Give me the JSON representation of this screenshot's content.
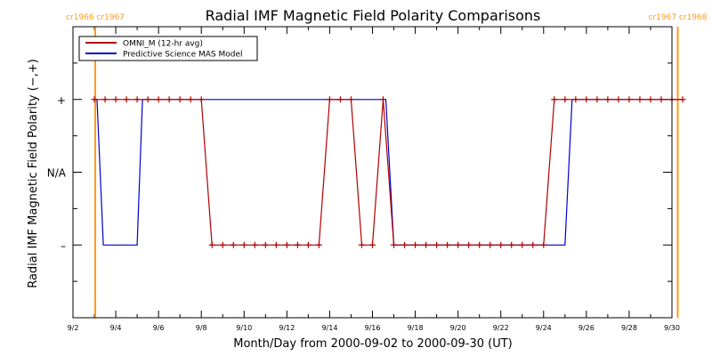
{
  "chart_data": {
    "type": "line",
    "title": "Radial IMF Magnetic Field Polarity Comparisons",
    "xlabel": "Month/Day from 2000-09-02 to 2000-09-30 (UT)",
    "ylabel": "Radial IMF Magnetic Field Polarity (−,+)",
    "x_unit": "days",
    "xlim": [
      "2000-09-02",
      "2000-09-30"
    ],
    "ylim": [
      -2,
      2
    ],
    "x_ticks": [
      {
        "x": "2000-09-02",
        "label": "9/2"
      },
      {
        "x": "2000-09-04",
        "label": "9/4"
      },
      {
        "x": "2000-09-06",
        "label": "9/6"
      },
      {
        "x": "2000-09-08",
        "label": "9/8"
      },
      {
        "x": "2000-09-10",
        "label": "9/10"
      },
      {
        "x": "2000-09-12",
        "label": "9/12"
      },
      {
        "x": "2000-09-14",
        "label": "9/14"
      },
      {
        "x": "2000-09-16",
        "label": "9/16"
      },
      {
        "x": "2000-09-18",
        "label": "9/18"
      },
      {
        "x": "2000-09-20",
        "label": "9/20"
      },
      {
        "x": "2000-09-22",
        "label": "9/22"
      },
      {
        "x": "2000-09-24",
        "label": "9/24"
      },
      {
        "x": "2000-09-26",
        "label": "9/26"
      },
      {
        "x": "2000-09-28",
        "label": "9/28"
      },
      {
        "x": "2000-09-30",
        "label": "9/30"
      }
    ],
    "y_ticks": [
      {
        "y": 1,
        "label": "+"
      },
      {
        "y": 0,
        "label": "N/A"
      },
      {
        "y": -1,
        "label": "–"
      }
    ],
    "legend_position": "top-left",
    "grid": false,
    "markers": [
      {
        "x": "2000-09-03 01:00",
        "label": "cr1966 cr1967",
        "color": "#ff9a1a"
      },
      {
        "x": "2000-09-30 06:30",
        "label": "cr1967 cr1968",
        "color": "#ff9a1a"
      }
    ],
    "series": [
      {
        "name": "OMNI_M (12-hr avg)",
        "color": "#b00000",
        "marker": "+",
        "points": [
          [
            "2000-09-03 00:00",
            1
          ],
          [
            "2000-09-03 12:00",
            1
          ],
          [
            "2000-09-04 00:00",
            1
          ],
          [
            "2000-09-04 12:00",
            1
          ],
          [
            "2000-09-05 00:00",
            1
          ],
          [
            "2000-09-05 12:00",
            1
          ],
          [
            "2000-09-06 00:00",
            1
          ],
          [
            "2000-09-06 12:00",
            1
          ],
          [
            "2000-09-07 00:00",
            1
          ],
          [
            "2000-09-07 12:00",
            1
          ],
          [
            "2000-09-08 00:00",
            1
          ],
          [
            "2000-09-08 12:00",
            -1
          ],
          [
            "2000-09-09 00:00",
            -1
          ],
          [
            "2000-09-09 12:00",
            -1
          ],
          [
            "2000-09-10 00:00",
            -1
          ],
          [
            "2000-09-10 12:00",
            -1
          ],
          [
            "2000-09-11 00:00",
            -1
          ],
          [
            "2000-09-11 12:00",
            -1
          ],
          [
            "2000-09-12 00:00",
            -1
          ],
          [
            "2000-09-12 12:00",
            -1
          ],
          [
            "2000-09-13 00:00",
            -1
          ],
          [
            "2000-09-13 12:00",
            -1
          ],
          [
            "2000-09-14 00:00",
            1
          ],
          [
            "2000-09-14 12:00",
            1
          ],
          [
            "2000-09-15 00:00",
            1
          ],
          [
            "2000-09-15 12:00",
            -1
          ],
          [
            "2000-09-16 00:00",
            -1
          ],
          [
            "2000-09-16 12:00",
            1
          ],
          [
            "2000-09-17 00:00",
            -1
          ],
          [
            "2000-09-17 12:00",
            -1
          ],
          [
            "2000-09-18 00:00",
            -1
          ],
          [
            "2000-09-18 12:00",
            -1
          ],
          [
            "2000-09-19 00:00",
            -1
          ],
          [
            "2000-09-19 12:00",
            -1
          ],
          [
            "2000-09-20 00:00",
            -1
          ],
          [
            "2000-09-20 12:00",
            -1
          ],
          [
            "2000-09-21 00:00",
            -1
          ],
          [
            "2000-09-21 12:00",
            -1
          ],
          [
            "2000-09-22 00:00",
            -1
          ],
          [
            "2000-09-22 12:00",
            -1
          ],
          [
            "2000-09-23 00:00",
            -1
          ],
          [
            "2000-09-23 12:00",
            -1
          ],
          [
            "2000-09-24 00:00",
            -1
          ],
          [
            "2000-09-24 12:00",
            1
          ],
          [
            "2000-09-25 00:00",
            1
          ],
          [
            "2000-09-25 12:00",
            1
          ],
          [
            "2000-09-26 00:00",
            1
          ],
          [
            "2000-09-26 12:00",
            1
          ],
          [
            "2000-09-27 00:00",
            1
          ],
          [
            "2000-09-27 12:00",
            1
          ],
          [
            "2000-09-28 00:00",
            1
          ],
          [
            "2000-09-28 12:00",
            1
          ],
          [
            "2000-09-29 00:00",
            1
          ],
          [
            "2000-09-29 12:00",
            1
          ],
          [
            "2000-09-30 00:00",
            1
          ],
          [
            "2000-09-30 12:00",
            1
          ]
        ]
      },
      {
        "name": "Predictive Science MAS Model",
        "color": "#0000cc",
        "points": [
          [
            "2000-09-03 00:00",
            1
          ],
          [
            "2000-09-03 03:00",
            1
          ],
          [
            "2000-09-03 10:00",
            -1
          ],
          [
            "2000-09-05 00:00",
            -1
          ],
          [
            "2000-09-05 06:00",
            1
          ],
          [
            "2000-09-16 15:00",
            1
          ],
          [
            "2000-09-17 00:00",
            -1
          ],
          [
            "2000-09-25 00:00",
            -1
          ],
          [
            "2000-09-25 08:00",
            1
          ],
          [
            "2000-09-30 12:00",
            1
          ]
        ]
      }
    ]
  }
}
